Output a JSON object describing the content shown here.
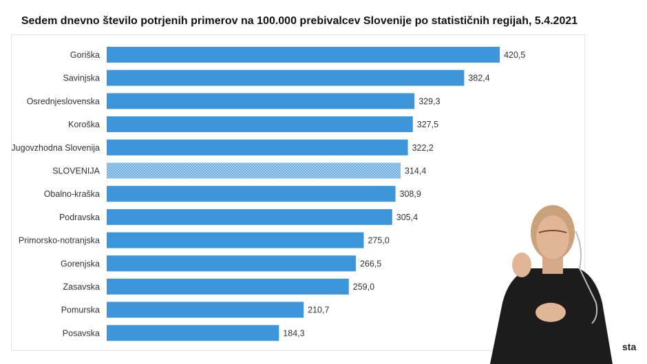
{
  "title": "Sedem dnevno število potrjenih primerov na 100.000 prebivalcev Slovenije po statističnih regijah, 5.4.2021",
  "logo_text": "sta",
  "colors": {
    "bar": "#3d95da",
    "bar_highlight": "#8fc0ea",
    "label": "#333333"
  },
  "chart_data": {
    "type": "bar",
    "orientation": "horizontal",
    "categories": [
      "Goriška",
      "Savinjska",
      "Osrednjeslovenska",
      "Koroška",
      "Jugovzhodna Slovenija",
      "SLOVENIJA",
      "Obalno-kraška",
      "Podravska",
      "Primorsko-notranjska",
      "Gorenjska",
      "Zasavska",
      "Pomurska",
      "Posavska"
    ],
    "values": [
      420.5,
      382.4,
      329.3,
      327.5,
      322.2,
      314.4,
      308.9,
      305.4,
      275.0,
      266.5,
      259.0,
      210.7,
      184.3
    ],
    "value_labels": [
      "420,5",
      "382,4",
      "329,3",
      "327,5",
      "322,2",
      "314,4",
      "308,9",
      "305,4",
      "275,0",
      "266,5",
      "259,0",
      "210,7",
      "184,3"
    ],
    "highlighted_category": "SLOVENIJA",
    "xlim": [
      0,
      430
    ],
    "grid": false
  }
}
